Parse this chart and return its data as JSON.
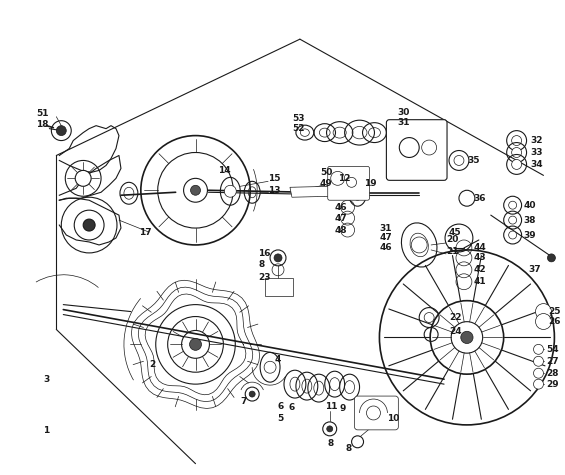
{
  "bg_color": "#ffffff",
  "lc": "#1a1a1a",
  "figsize": [
    5.65,
    4.75
  ],
  "dpi": 100,
  "gray": "#555555",
  "darkgray": "#333333",
  "lightgray": "#aaaaaa"
}
